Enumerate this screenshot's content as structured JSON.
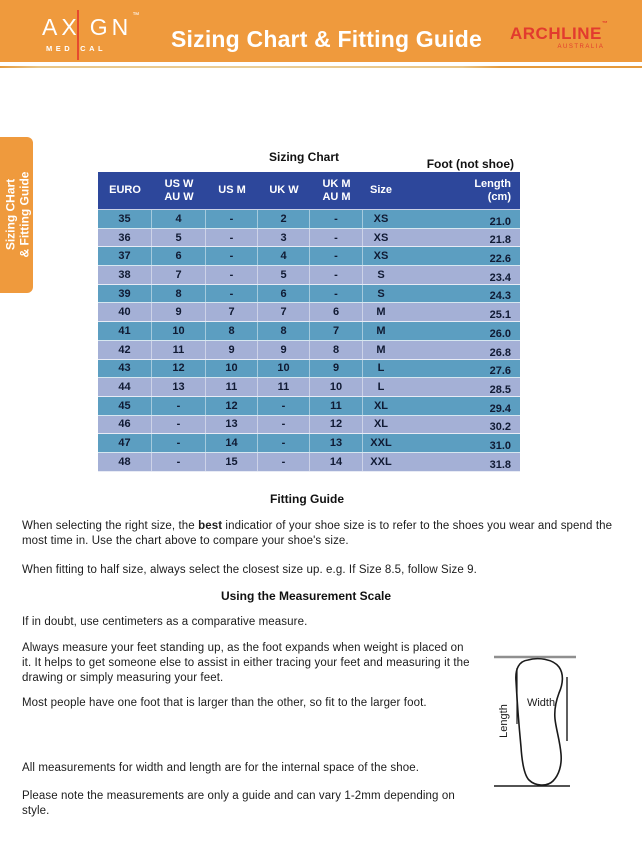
{
  "header": {
    "title": "Sizing Chart & Fitting Guide",
    "axign": {
      "name_left": "AX",
      "name_right": "GN",
      "tm": "™",
      "sub_left": "MED",
      "sub_right": "CAL"
    },
    "archline": {
      "name": "ARCHLINE",
      "tm": "™",
      "sub": "AUSTRALIA"
    }
  },
  "sidebar_tab": {
    "line1": "Sizing CHart",
    "line2": "& Fitting Guide"
  },
  "sizing_chart": {
    "title": "Sizing Chart",
    "foot_note": "Foot (not shoe)",
    "columns": [
      [
        "EURO"
      ],
      [
        "US W",
        "AU W"
      ],
      [
        "US M"
      ],
      [
        "UK W"
      ],
      [
        "UK M",
        "AU M"
      ],
      [
        "Size"
      ],
      [
        "Length",
        "(cm)"
      ]
    ],
    "rows": [
      [
        "35",
        "4",
        "-",
        "2",
        "-",
        "XS",
        "21.0"
      ],
      [
        "36",
        "5",
        "-",
        "3",
        "-",
        "XS",
        "21.8"
      ],
      [
        "37",
        "6",
        "-",
        "4",
        "-",
        "XS",
        "22.6"
      ],
      [
        "38",
        "7",
        "-",
        "5",
        "-",
        "S",
        "23.4"
      ],
      [
        "39",
        "8",
        "-",
        "6",
        "-",
        "S",
        "24.3"
      ],
      [
        "40",
        "9",
        "7",
        "7",
        "6",
        "M",
        "25.1"
      ],
      [
        "41",
        "10",
        "8",
        "8",
        "7",
        "M",
        "26.0"
      ],
      [
        "42",
        "11",
        "9",
        "9",
        "8",
        "M",
        "26.8"
      ],
      [
        "43",
        "12",
        "10",
        "10",
        "9",
        "L",
        "27.6"
      ],
      [
        "44",
        "13",
        "11",
        "11",
        "10",
        "L",
        "28.5"
      ],
      [
        "45",
        "-",
        "12",
        "-",
        "11",
        "XL",
        "29.4"
      ],
      [
        "46",
        "-",
        "13",
        "-",
        "12",
        "XL",
        "30.2"
      ],
      [
        "47",
        "-",
        "14",
        "-",
        "13",
        "XXL",
        "31.0"
      ],
      [
        "48",
        "-",
        "15",
        "-",
        "14",
        "XXL",
        "31.8"
      ]
    ]
  },
  "fitting_guide": {
    "heading": "Fitting Guide",
    "p1_pre": "When selecting the right size, the ",
    "p1_bold": "best",
    "p1_post": " indicatior of your shoe size is to refer to the shoes you wear and spend the most time in. Use the chart above to compare your shoe's size.",
    "p2": "When fitting to half size, always select the closest size up. e.g. If Size 8.5, follow Size 9."
  },
  "measurement_scale": {
    "heading": "Using the Measurement Scale",
    "p1": "If in doubt, use centimeters as a comparative measure.",
    "p2": "Always measure your feet standing up, as the foot expands when weight is placed on it. It helps to get someone else to assist in either tracing your feet and measuring it the drawing or simply measuring your feet.",
    "p3": "Most people have one foot that is larger than the other, so fit to the larger foot.",
    "p4": "All measurements for width and length are for the internal space of the shoe.",
    "p5": "Please note the measurements are only a guide and can vary 1-2mm depending on style."
  },
  "diagram": {
    "width_label": "Width",
    "length_label": "Length"
  },
  "colors": {
    "header_orange": "#EF9A3D",
    "logo_red": "#E23B2E",
    "table_header_blue": "#2D479B",
    "row_teal": "#5C9EC1",
    "row_light": "#A4B0D6"
  }
}
